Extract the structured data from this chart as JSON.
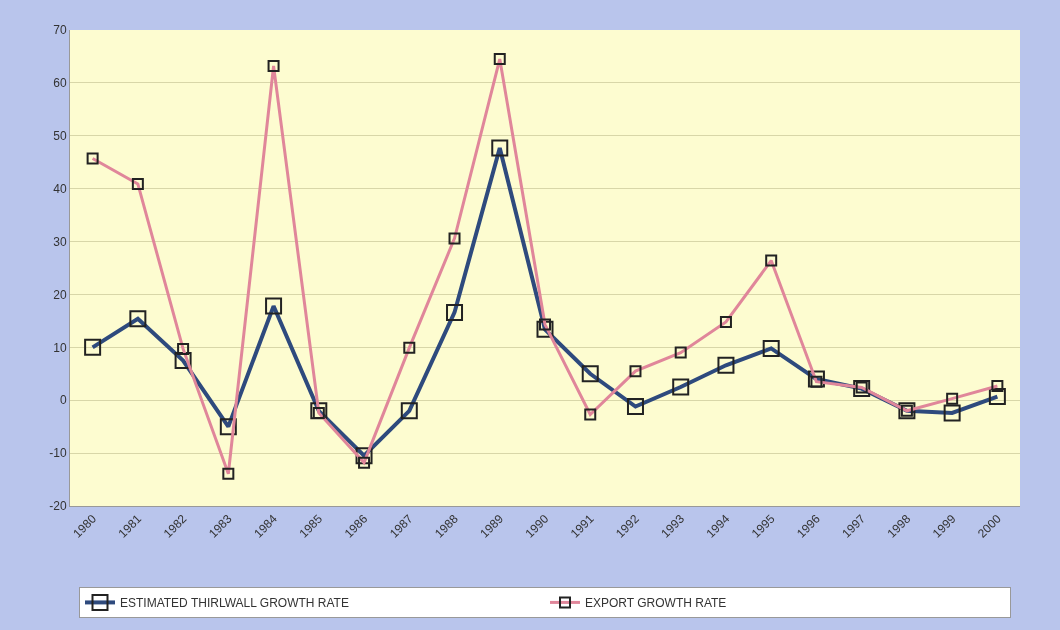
{
  "chart_data": {
    "type": "line",
    "categories": [
      "1980",
      "1981",
      "1982",
      "1983",
      "1984",
      "1985",
      "1986",
      "1987",
      "1988",
      "1989",
      "1990",
      "1991",
      "1992",
      "1993",
      "1994",
      "1995",
      "1996",
      "1997",
      "1998",
      "1999",
      "2000"
    ],
    "series": [
      {
        "name": "ESTIMATED THIRLWALL GROWTH RATE",
        "color": "#2e4a7d",
        "values": [
          10,
          15.4,
          7.5,
          -5,
          17.8,
          -2,
          -10.5,
          -2,
          16.6,
          47.7,
          13.4,
          5,
          -1.2,
          2.5,
          6.6,
          9.8,
          4,
          2.2,
          -2,
          -2.4,
          0.7
        ]
      },
      {
        "name": "EXPORT GROWTH RATE",
        "color": "#e0869a",
        "values": [
          45.7,
          40.9,
          9.7,
          -13.9,
          63.2,
          -2.4,
          -11.8,
          9.9,
          30.6,
          64.5,
          14.3,
          -2.7,
          5.5,
          9,
          14.8,
          26.4,
          3.5,
          2.4,
          -2,
          0.3,
          2.7
        ]
      }
    ],
    "ylim": [
      -20,
      70
    ],
    "yticks": [
      -20,
      -10,
      0,
      10,
      20,
      30,
      40,
      50,
      60,
      70
    ],
    "grid": "y",
    "legend": "bottom",
    "marker": "square",
    "line_style": "solid"
  }
}
